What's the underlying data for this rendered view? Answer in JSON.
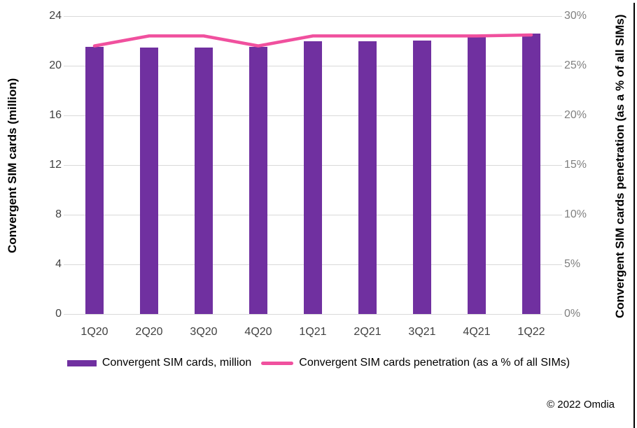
{
  "chart_data": {
    "type": "combo-bar-line",
    "title": "",
    "categories": [
      "1Q20",
      "2Q20",
      "3Q20",
      "4Q20",
      "1Q21",
      "2Q21",
      "3Q21",
      "4Q21",
      "1Q22"
    ],
    "series": [
      {
        "name": "Convergent SIM cards, million",
        "type": "bar",
        "axis": "left",
        "color": "#7030A0",
        "values": [
          21.5,
          21.45,
          21.45,
          21.5,
          21.95,
          21.95,
          22.05,
          22.35,
          22.6
        ]
      },
      {
        "name": "Convergent SIM cards penetration (as a % of all SIMs)",
        "type": "line",
        "axis": "right",
        "color": "#F0509E",
        "values": [
          27,
          28,
          28,
          27,
          28,
          28,
          28,
          28,
          28.1
        ]
      }
    ],
    "left_axis": {
      "title": "Convergent SIM cards (million)",
      "min": 0,
      "max": 24,
      "tick_labels": [
        "24",
        "20",
        "16",
        "12",
        "8",
        "4",
        "0"
      ]
    },
    "right_axis": {
      "title": "Convergent SIM cards penetration (as a % of all SIMs)",
      "min": 0,
      "max": 30,
      "tick_labels": [
        "30%",
        "25%",
        "20%",
        "15%",
        "10%",
        "5%",
        "0%"
      ]
    },
    "grid": true,
    "legend_position": "bottom"
  },
  "legend": {
    "items": [
      {
        "label": "Convergent SIM cards, million",
        "swatch": "bar",
        "color": "#7030A0"
      },
      {
        "label": "Convergent SIM cards penetration (as a % of all SIMs)",
        "swatch": "line",
        "color": "#F0509E"
      }
    ]
  },
  "footer": {
    "copyright": "© 2022 Omdia"
  },
  "colors": {
    "grid": "#D9D9D9",
    "left_tick_text": "#404040",
    "right_tick_text": "#808080",
    "x_label_text": "#404040"
  }
}
